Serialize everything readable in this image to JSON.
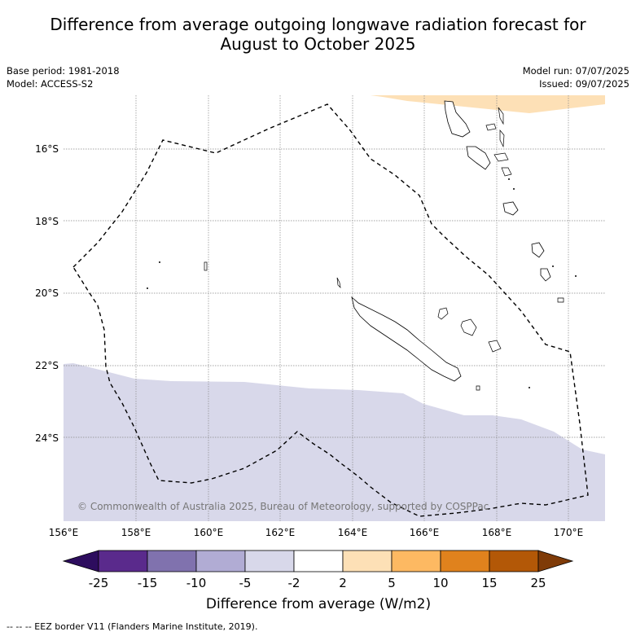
{
  "title_line1": "Difference from average outgoing longwave radiation forecast for",
  "title_line2": "August to October 2025",
  "meta_left": [
    "Base period: 1981-2018",
    "Model: ACCESS-S2"
  ],
  "meta_right": [
    "Model run: 07/07/2025",
    "Issued: 09/07/2025"
  ],
  "map": {
    "lon_range": [
      156,
      171
    ],
    "lat_range": [
      -26.4,
      -14.5
    ],
    "lon_ticks": [
      "156°E",
      "158°E",
      "160°E",
      "162°E",
      "164°E",
      "166°E",
      "168°E",
      "170°E"
    ],
    "lat_ticks": [
      "16°S",
      "18°S",
      "20°S",
      "22°S",
      "24°S"
    ],
    "copyright": "© Commonwealth of Australia 2025, Bureau of Meteorology, supported by COSPPac",
    "shaded_regions": [
      {
        "category": "-5 to -2",
        "color": "#d8d8ea",
        "area": "south"
      },
      {
        "category": "2 to 5",
        "color": "#fde0b6",
        "area": "north-east"
      }
    ]
  },
  "colorbar": {
    "labels": [
      "-25",
      "-15",
      "-10",
      "-5",
      "-2",
      "2",
      "5",
      "10",
      "15",
      "25"
    ],
    "colors": [
      "#2d0d5e",
      "#5a2a8c",
      "#8072ae",
      "#b1acd4",
      "#d8d8ea",
      "#ffffff",
      "#fde0b6",
      "#fdb962",
      "#e0821d",
      "#b35807",
      "#7f3b08"
    ],
    "title": "Difference from average (W/m2)"
  },
  "footer": "-- -- -- EEZ border V11 (Flanders Marine Institute, 2019)."
}
